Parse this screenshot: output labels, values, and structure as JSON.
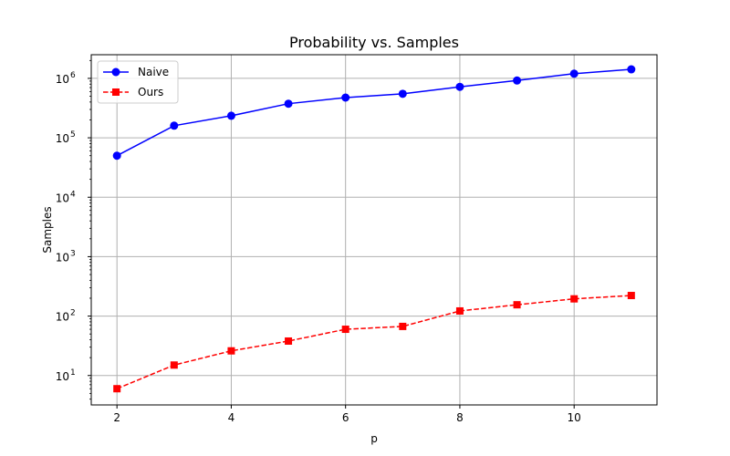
{
  "chart_data": {
    "type": "line",
    "title": "Probability vs. Samples",
    "xlabel": "p",
    "ylabel": "Samples",
    "yscale": "log",
    "xlim": [
      1.55,
      11.45
    ],
    "ylim": [
      3.2,
      2500000
    ],
    "xticks": [
      2,
      4,
      6,
      8,
      10
    ],
    "yticks": [
      {
        "value": 10,
        "base": "10",
        "exp": "1"
      },
      {
        "value": 100,
        "base": "10",
        "exp": "2"
      },
      {
        "value": 1000,
        "base": "10",
        "exp": "3"
      },
      {
        "value": 10000,
        "base": "10",
        "exp": "4"
      },
      {
        "value": 100000,
        "base": "10",
        "exp": "5"
      },
      {
        "value": 1000000,
        "base": "10",
        "exp": "6"
      }
    ],
    "grid": true,
    "legend_position": "top-left",
    "x": [
      2,
      3,
      4,
      5,
      6,
      7,
      8,
      9,
      10,
      11
    ],
    "series": [
      {
        "name": "Naive",
        "color": "#0000ff",
        "linestyle": "solid",
        "marker": "circle",
        "values": [
          50000,
          160000,
          235000,
          375000,
          475000,
          550000,
          720000,
          920000,
          1200000,
          1420000
        ]
      },
      {
        "name": "Ours",
        "color": "#ff0000",
        "linestyle": "dashed",
        "marker": "square",
        "values": [
          6,
          15,
          26,
          38,
          60,
          67,
          122,
          155,
          195,
          222
        ]
      }
    ]
  }
}
